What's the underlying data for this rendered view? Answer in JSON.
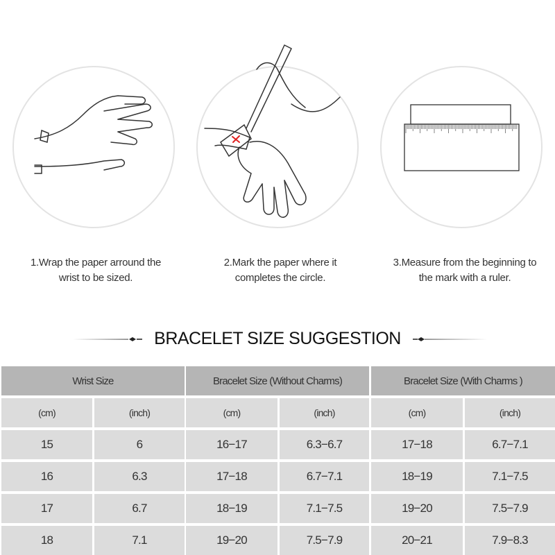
{
  "steps": [
    {
      "line1": "1.Wrap the paper arround the",
      "line2": "wrist to be sized.",
      "icon": "hand-wrap-paper-icon"
    },
    {
      "line1": "2.Mark the paper where it",
      "line2": "completes the circle.",
      "icon": "hand-mark-pen-icon"
    },
    {
      "line1": "3.Measure from the beginning to",
      "line2": "the mark with a ruler.",
      "icon": "ruler-icon"
    }
  ],
  "title": "BRACELET SIZE SUGGESTION",
  "table": {
    "groups": [
      "Wrist Size",
      "Bracelet Size (Without Charms)",
      "Bracelet Size (With Charms )"
    ],
    "units": [
      "(cm)",
      "(inch)",
      "(cm)",
      "(inch)",
      "(cm)",
      "(inch)"
    ],
    "rows": [
      [
        "15",
        "6",
        "16−17",
        "6.3−6.7",
        "17−18",
        "6.7−7.1"
      ],
      [
        "16",
        "6.3",
        "17−18",
        "6.7−7.1",
        "18−19",
        "7.1−7.5"
      ],
      [
        "17",
        "6.7",
        "18−19",
        "7.1−7.5",
        "19−20",
        "7.5−7.9"
      ],
      [
        "18",
        "7.1",
        "19−20",
        "7.5−7.9",
        "20−21",
        "7.9−8.3"
      ]
    ]
  },
  "colors": {
    "header": "#b5b5b5",
    "body": "#dcdcdc",
    "mark": "#e02020"
  }
}
